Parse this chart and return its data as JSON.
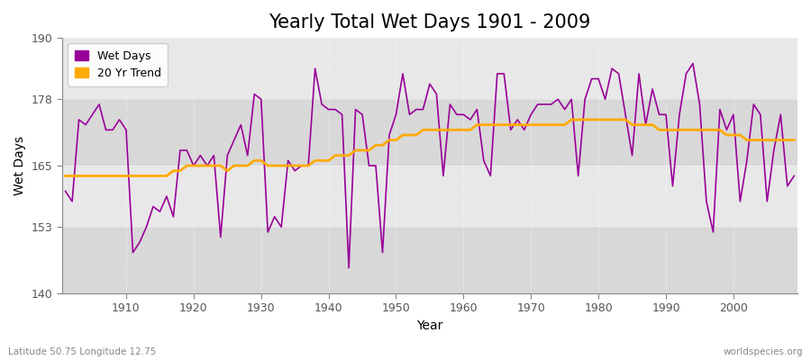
{
  "title": "Yearly Total Wet Days 1901 - 2009",
  "xlabel": "Year",
  "ylabel": "Wet Days",
  "footnote_left": "Latitude 50.75 Longitude 12.75",
  "footnote_right": "worldspecies.org",
  "legend_wet": "Wet Days",
  "legend_trend": "20 Yr Trend",
  "wet_color": "#990099",
  "trend_color": "#ffaa00",
  "bg_color": "#ffffff",
  "plot_bg": "#e8e8e8",
  "band_color": "#d8d8d8",
  "ylim": [
    140,
    190
  ],
  "yticks": [
    140,
    153,
    165,
    178,
    190
  ],
  "xstart": 1901,
  "wet_days": [
    160,
    158,
    174,
    173,
    175,
    177,
    172,
    172,
    174,
    172,
    148,
    150,
    153,
    157,
    156,
    159,
    155,
    168,
    168,
    165,
    167,
    165,
    167,
    151,
    167,
    170,
    173,
    167,
    179,
    178,
    152,
    155,
    153,
    166,
    164,
    165,
    165,
    184,
    177,
    176,
    176,
    175,
    145,
    176,
    175,
    165,
    165,
    148,
    171,
    175,
    183,
    175,
    176,
    176,
    181,
    179,
    163,
    177,
    175,
    175,
    174,
    176,
    166,
    163,
    183,
    183,
    172,
    174,
    172,
    175,
    177,
    177,
    177,
    178,
    176,
    178,
    163,
    178,
    182,
    182,
    178,
    184,
    183,
    175,
    167,
    183,
    173,
    180,
    175,
    175,
    161,
    175,
    183,
    185,
    177,
    158,
    152,
    176,
    172,
    175,
    158,
    166,
    177,
    175,
    158,
    168,
    175,
    161,
    163
  ],
  "trend_days": [
    163,
    163,
    163,
    163,
    163,
    163,
    163,
    163,
    163,
    163,
    163,
    163,
    163,
    163,
    163,
    163,
    164,
    164,
    165,
    165,
    165,
    165,
    165,
    165,
    164,
    165,
    165,
    165,
    166,
    166,
    165,
    165,
    165,
    165,
    165,
    165,
    165,
    166,
    166,
    166,
    167,
    167,
    167,
    168,
    168,
    168,
    169,
    169,
    170,
    170,
    171,
    171,
    171,
    172,
    172,
    172,
    172,
    172,
    172,
    172,
    172,
    173,
    173,
    173,
    173,
    173,
    173,
    173,
    173,
    173,
    173,
    173,
    173,
    173,
    173,
    174,
    174,
    174,
    174,
    174,
    174,
    174,
    174,
    174,
    173,
    173,
    173,
    173,
    172,
    172,
    172,
    172,
    172,
    172,
    172,
    172,
    172,
    172,
    171,
    171,
    171,
    170,
    170,
    170,
    170,
    170,
    170,
    170,
    170
  ]
}
